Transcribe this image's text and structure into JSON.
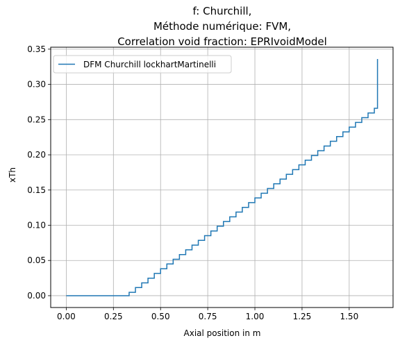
{
  "chart_data": {
    "type": "line",
    "title": [
      "f: Churchill,",
      "Méthode numérique: FVM,",
      "Correlation void fraction: EPRIvoidModel"
    ],
    "xlabel": "Axial position in m",
    "ylabel": "xTh",
    "xlim": [
      -0.0825,
      1.7325
    ],
    "ylim": [
      -0.0168,
      0.3528
    ],
    "xticks": [
      0.0,
      0.25,
      0.5,
      0.75,
      1.0,
      1.25,
      1.5
    ],
    "xtick_labels": [
      "0.00",
      "0.25",
      "0.50",
      "0.75",
      "1.00",
      "1.25",
      "1.50"
    ],
    "yticks": [
      0.0,
      0.05,
      0.1,
      0.15,
      0.2,
      0.25,
      0.3,
      0.35
    ],
    "ytick_labels": [
      "0.00",
      "0.05",
      "0.10",
      "0.15",
      "0.20",
      "0.25",
      "0.30",
      "0.35"
    ],
    "grid": true,
    "legend_position": "top-left",
    "series": [
      {
        "name": "DFM Churchill lockhartMartinelli",
        "color": "#1f77b4",
        "step": "post",
        "x": [
          0.0,
          0.0333,
          0.0667,
          0.1,
          0.1333,
          0.1667,
          0.2,
          0.2333,
          0.2667,
          0.3,
          0.3333,
          0.3667,
          0.4,
          0.4333,
          0.4667,
          0.5,
          0.5333,
          0.5667,
          0.6,
          0.6333,
          0.6667,
          0.7,
          0.7333,
          0.7667,
          0.8,
          0.8333,
          0.8667,
          0.9,
          0.9333,
          0.9667,
          1.0,
          1.0333,
          1.0667,
          1.1,
          1.1333,
          1.1667,
          1.2,
          1.2333,
          1.2667,
          1.3,
          1.3333,
          1.3667,
          1.4,
          1.4333,
          1.4667,
          1.5,
          1.5333,
          1.5667,
          1.6,
          1.6333,
          1.65
        ],
        "y": [
          0.0,
          0.0,
          0.0,
          0.0,
          0.0,
          0.0,
          0.0,
          0.0,
          0.0,
          0.0,
          0.0048,
          0.0115,
          0.0182,
          0.0249,
          0.0316,
          0.0383,
          0.045,
          0.0517,
          0.0584,
          0.0651,
          0.0718,
          0.0785,
          0.0852,
          0.0919,
          0.0986,
          0.1053,
          0.112,
          0.1187,
          0.1254,
          0.1321,
          0.1388,
          0.1455,
          0.1522,
          0.1589,
          0.1656,
          0.1723,
          0.179,
          0.1857,
          0.1924,
          0.1991,
          0.2058,
          0.2125,
          0.2192,
          0.2259,
          0.2326,
          0.2393,
          0.246,
          0.2527,
          0.2594,
          0.2661,
          0.336
        ]
      }
    ]
  }
}
